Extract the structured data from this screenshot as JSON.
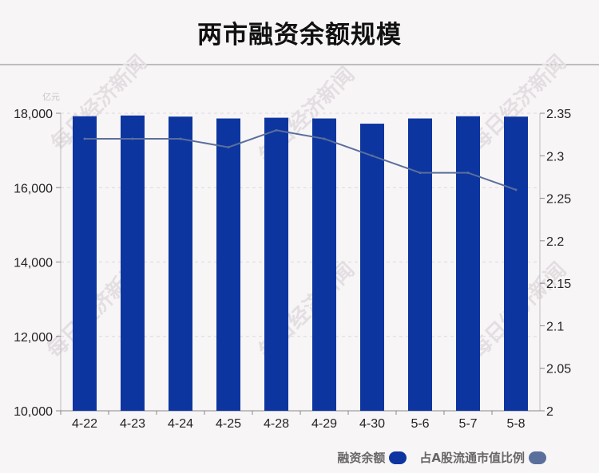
{
  "title": "两市融资余额规模",
  "chart_data": {
    "type": "bar",
    "categories": [
      "4-22",
      "4-23",
      "4-24",
      "4-25",
      "4-28",
      "4-29",
      "4-30",
      "5-6",
      "5-7",
      "5-8"
    ],
    "series": [
      {
        "name": "融资余额",
        "type": "bar",
        "axis": "left",
        "color": "#0c35a0",
        "values": [
          17920,
          17940,
          17910,
          17860,
          17880,
          17860,
          17720,
          17860,
          17920,
          17910
        ]
      },
      {
        "name": "占A股流通市值比例",
        "type": "line",
        "axis": "right",
        "color": "#5a6f9c",
        "values": [
          2.32,
          2.32,
          2.32,
          2.31,
          2.33,
          2.32,
          2.3,
          2.28,
          2.28,
          2.26
        ]
      }
    ],
    "y_left": {
      "unit_label": "亿元",
      "ylim": [
        10000,
        18000
      ],
      "ticks": [
        10000,
        12000,
        14000,
        16000,
        18000
      ],
      "tick_labels": [
        "10,000",
        "12,000",
        "14,000",
        "16,000",
        "18,000"
      ]
    },
    "y_right": {
      "ylim": [
        2,
        2.35
      ],
      "ticks": [
        2,
        2.05,
        2.1,
        2.15,
        2.2,
        2.25,
        2.3,
        2.35
      ],
      "tick_labels": [
        "2",
        "2.05",
        "2.1",
        "2.15",
        "2.2",
        "2.25",
        "2.3",
        "2.35"
      ]
    },
    "grid": true,
    "legend_position": "bottom-right"
  },
  "watermark": "每日经济新闻"
}
